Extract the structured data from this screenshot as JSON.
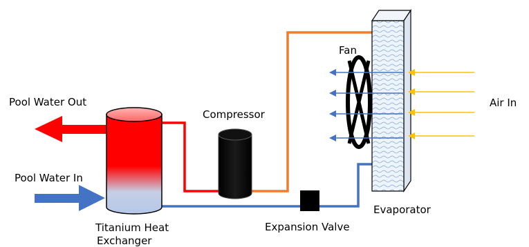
{
  "labels": {
    "pool_water_out": "Pool Water Out",
    "pool_water_in": "Pool Water In",
    "compressor": "Compressor",
    "fan": "Fan",
    "air_in": "Air In",
    "evaporator": "Evaporator",
    "expansion_valve": "Expansion Valve",
    "heat_exchanger_line1": "Titanium Heat",
    "heat_exchanger_line2": "Exchanger"
  },
  "colors": {
    "hot_water": "#ff0000",
    "cold_water": "#4472c4",
    "hot_refrigerant": "#ed7d31",
    "cold_refrigerant": "#4472c4",
    "air": "#ffc000",
    "exchanger_bottom": "#b4c7e7",
    "component": "#000000",
    "evaporator_fill": "#dce9f7"
  }
}
